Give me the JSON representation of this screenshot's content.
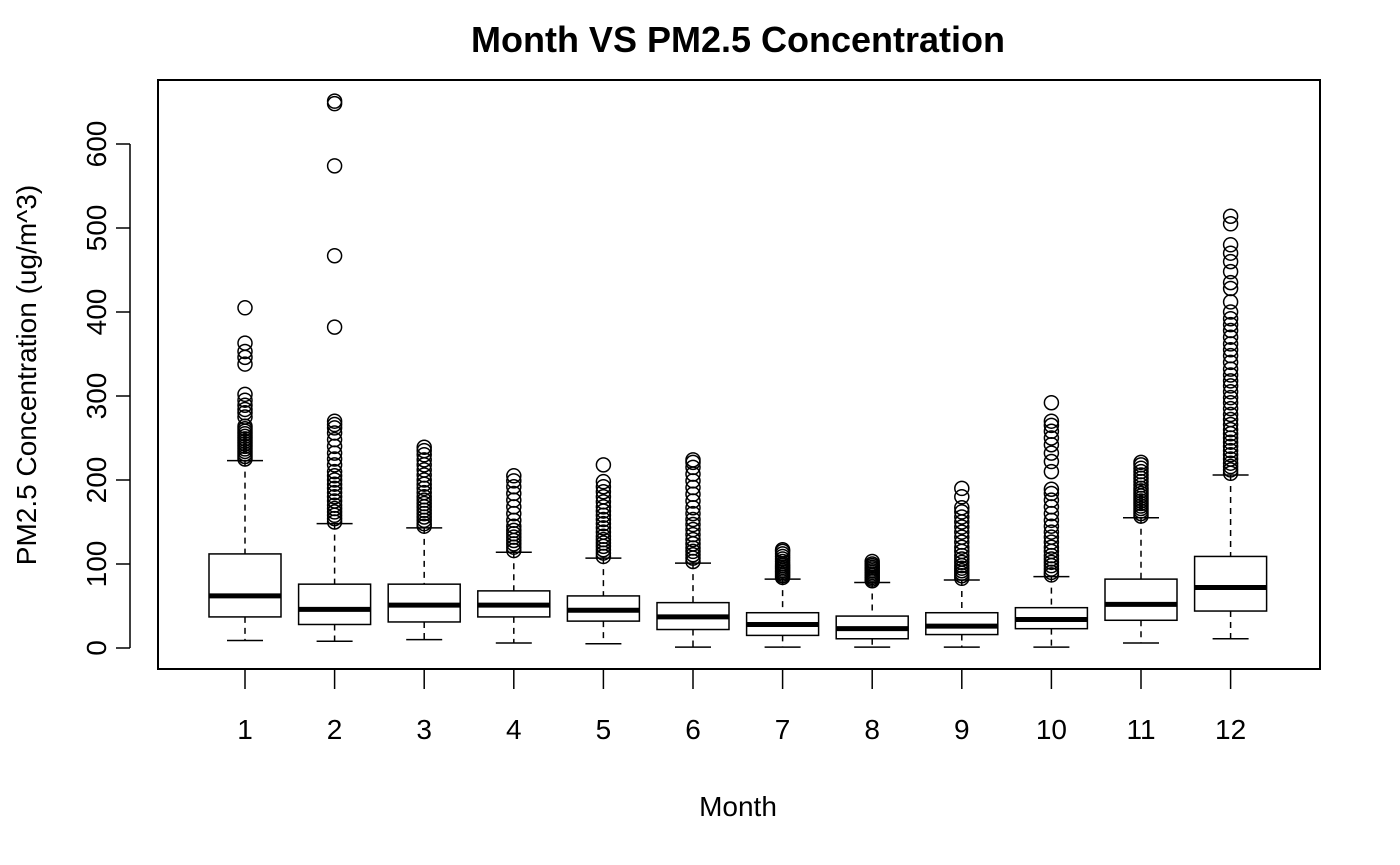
{
  "chart_data": {
    "type": "boxplot",
    "title": "Month VS PM2.5 Concentration",
    "xlabel": "Month",
    "ylabel": "PM2.5 Concentration (ug/m^3)",
    "ylim": [
      0,
      650
    ],
    "yticks": [
      0,
      100,
      200,
      300,
      400,
      500,
      600
    ],
    "categories": [
      "1",
      "2",
      "3",
      "4",
      "5",
      "6",
      "7",
      "8",
      "9",
      "10",
      "11",
      "12"
    ],
    "boxes": [
      {
        "month": "1",
        "min": 9,
        "q1": 37,
        "median": 62,
        "q3": 112,
        "max": 223,
        "outliers": [
          225,
          228,
          231,
          234,
          237,
          240,
          243,
          246,
          249,
          252,
          255,
          258,
          261,
          264,
          275,
          280,
          284,
          289,
          295,
          302,
          338,
          346,
          353,
          363,
          405
        ]
      },
      {
        "month": "2",
        "min": 8,
        "q1": 28,
        "median": 46,
        "q3": 76,
        "max": 148,
        "outliers": [
          150,
          154,
          158,
          162,
          166,
          170,
          175,
          180,
          185,
          190,
          195,
          200,
          205,
          210,
          218,
          225,
          232,
          240,
          248,
          256,
          262,
          266,
          270,
          382,
          467,
          574,
          648,
          651
        ]
      },
      {
        "month": "3",
        "min": 10,
        "q1": 31,
        "median": 51,
        "q3": 76,
        "max": 143,
        "outliers": [
          145,
          148,
          152,
          156,
          160,
          164,
          168,
          172,
          176,
          180,
          185,
          190,
          195,
          200,
          206,
          212,
          218,
          224,
          230,
          235,
          239
        ]
      },
      {
        "month": "4",
        "min": 6,
        "q1": 37,
        "median": 51,
        "q3": 68,
        "max": 114,
        "outliers": [
          116,
          120,
          124,
          128,
          132,
          136,
          140,
          145,
          152,
          160,
          168,
          176,
          184,
          192,
          199,
          205
        ]
      },
      {
        "month": "5",
        "min": 5,
        "q1": 32,
        "median": 45,
        "q3": 62,
        "max": 107,
        "outliers": [
          109,
          113,
          117,
          121,
          125,
          129,
          133,
          138,
          143,
          148,
          153,
          158,
          163,
          168,
          174,
          180,
          186,
          192,
          198,
          218
        ]
      },
      {
        "month": "6",
        "min": 1,
        "q1": 22,
        "median": 37,
        "q3": 54,
        "max": 101,
        "outliers": [
          103,
          107,
          111,
          115,
          119,
          124,
          129,
          135,
          141,
          147,
          153,
          160,
          167,
          175,
          183,
          191,
          199,
          207,
          215,
          221,
          224
        ]
      },
      {
        "month": "7",
        "min": 1,
        "q1": 15,
        "median": 28,
        "q3": 42,
        "max": 82,
        "outliers": [
          84,
          86,
          88,
          90,
          92,
          94,
          96,
          98,
          100,
          103,
          106,
          109,
          112,
          115,
          117
        ]
      },
      {
        "month": "8",
        "min": 1,
        "q1": 11,
        "median": 23,
        "q3": 38,
        "max": 78,
        "outliers": [
          80,
          82,
          84,
          86,
          88,
          90,
          92,
          94,
          96,
          98,
          100,
          103
        ]
      },
      {
        "month": "9",
        "min": 1,
        "q1": 16,
        "median": 26,
        "q3": 42,
        "max": 81,
        "outliers": [
          83,
          86,
          89,
          92,
          95,
          98,
          102,
          106,
          110,
          115,
          120,
          126,
          132,
          138,
          144,
          150,
          156,
          162,
          167,
          180,
          190
        ]
      },
      {
        "month": "10",
        "min": 1,
        "q1": 23,
        "median": 34,
        "q3": 48,
        "max": 85,
        "outliers": [
          87,
          90,
          94,
          98,
          102,
          106,
          110,
          115,
          120,
          126,
          132,
          138,
          145,
          152,
          160,
          168,
          176,
          184,
          189,
          210,
          222,
          232,
          242,
          250,
          258,
          265,
          270,
          292
        ]
      },
      {
        "month": "11",
        "min": 6,
        "q1": 33,
        "median": 52,
        "q3": 82,
        "max": 155,
        "outliers": [
          157,
          160,
          163,
          166,
          169,
          172,
          175,
          178,
          181,
          184,
          187,
          190,
          194,
          198,
          202,
          206,
          210,
          214,
          218,
          221
        ]
      },
      {
        "month": "12",
        "min": 11,
        "q1": 44,
        "median": 72,
        "q3": 109,
        "max": 206,
        "outliers": [
          208,
          212,
          216,
          220,
          225,
          230,
          235,
          240,
          245,
          250,
          255,
          260,
          266,
          272,
          278,
          285,
          292,
          298,
          305,
          312,
          318,
          325,
          332,
          340,
          348,
          355,
          362,
          370,
          378,
          385,
          392,
          400,
          412,
          428,
          435,
          448,
          460,
          470,
          480,
          505,
          514
        ]
      }
    ]
  }
}
